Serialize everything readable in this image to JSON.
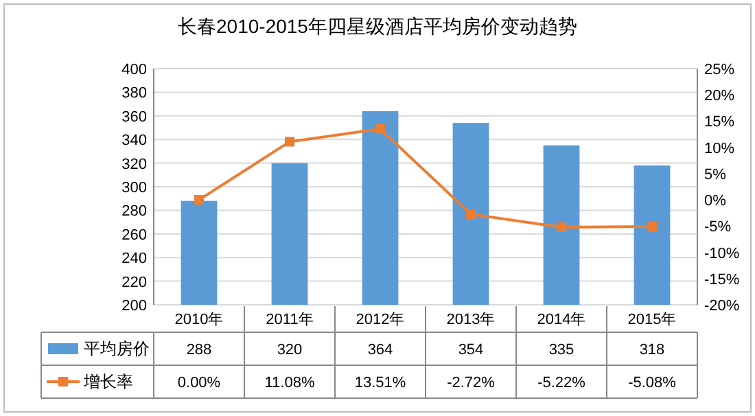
{
  "chart_data": {
    "type": "bar",
    "title": "长春2010-2015年四星级酒店平均房价变动趋势",
    "categories": [
      "2010年",
      "2011年",
      "2012年",
      "2013年",
      "2014年",
      "2015年"
    ],
    "series": [
      {
        "name": "平均房价",
        "color": "#5b9bd5",
        "values": [
          288,
          320,
          364,
          354,
          335,
          318
        ],
        "value_labels": [
          "288",
          "320",
          "364",
          "354",
          "335",
          "318"
        ]
      },
      {
        "name": "增长率",
        "type": "line",
        "axis": "y2",
        "color": "#ed7d31",
        "marker": "square",
        "values": [
          0.0,
          11.08,
          13.51,
          -2.72,
          -5.22,
          -5.08
        ],
        "value_labels": [
          "0.00%",
          "11.08%",
          "13.51%",
          "-2.72%",
          "-5.22%",
          "-5.08%"
        ]
      }
    ],
    "ylim": [
      200,
      400
    ],
    "yticks": [
      200,
      220,
      240,
      260,
      280,
      300,
      320,
      340,
      360,
      380,
      400
    ],
    "y2lim": [
      -20,
      25
    ],
    "y2ticks": [
      {
        "value": -20,
        "label": "-20%"
      },
      {
        "value": -15,
        "label": "-15%"
      },
      {
        "value": -10,
        "label": "-10%"
      },
      {
        "value": -5,
        "label": "-5%"
      },
      {
        "value": 0,
        "label": "0%"
      },
      {
        "value": 5,
        "label": "5%"
      },
      {
        "value": 10,
        "label": "10%"
      },
      {
        "value": 15,
        "label": "15%"
      },
      {
        "value": 20,
        "label": "20%"
      },
      {
        "value": 25,
        "label": "25%"
      }
    ],
    "grid": "y",
    "legend": "bottom"
  }
}
